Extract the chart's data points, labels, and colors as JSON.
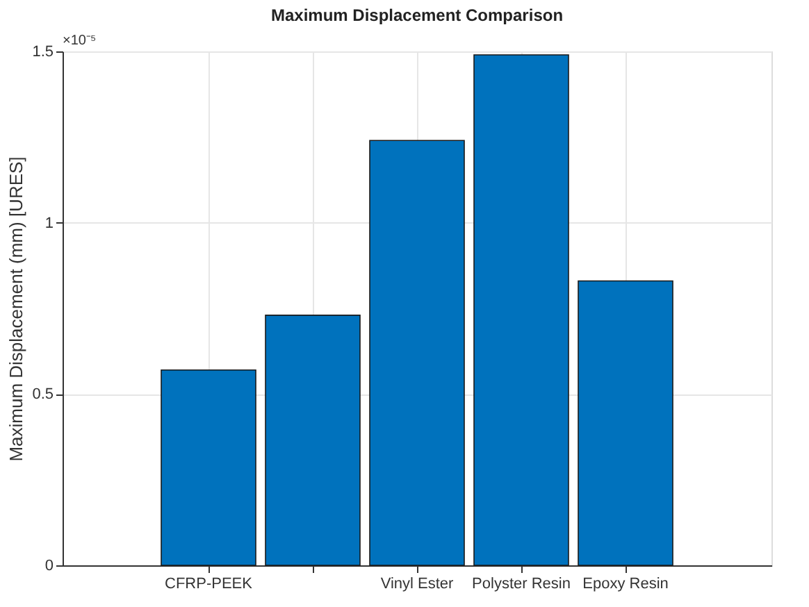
{
  "chart_data": {
    "type": "bar",
    "title": "Maximum Displacement Comparison",
    "ylabel": "Maximum Displacement (mm) [URES]",
    "categories": [
      "CFRP-PEEK",
      null,
      "Vinyl Ester",
      "Polyster Resin",
      "Epoxy Resin"
    ],
    "values": [
      0.57,
      0.73,
      1.24,
      1.49,
      0.83
    ],
    "color": "#0072bd",
    "ylim": [
      0,
      1.5
    ],
    "yticks": [
      0,
      0.5,
      1,
      1.5
    ],
    "annotations": [
      "×10⁻⁵"
    ],
    "grid": true
  }
}
